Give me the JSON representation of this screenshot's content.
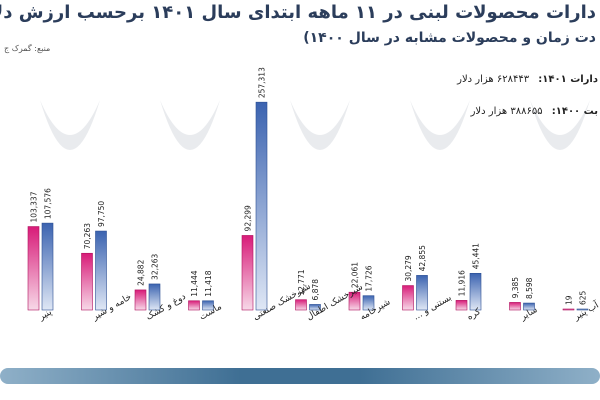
{
  "header": {
    "title": "دارات محصولات لبنی در ۱۱ ماهه ابتدای سال ۱۴۰۱ برحسب ارزش دلار",
    "subtitle": "دت زمان و محصولات مشابه در سال ۱۴۰۰)",
    "source": "منبع: گمرک ج"
  },
  "legend": {
    "row1_label": "دارات ۱۴۰۱:",
    "row1_value": "۶۲۸۴۴۳ هزار دلار",
    "row2_label": "بت ۱۴۰۰:",
    "row2_value": "۳۸۸۶۵۵ هزار دلار"
  },
  "colors": {
    "series_1401": "#d81b78",
    "series_1400": "#3b63b0",
    "band": "#3f6f94"
  },
  "chart_data": {
    "type": "bar",
    "categories": [
      "پنیر",
      "خامه و شیر",
      "دوغ و کشک",
      "ماست",
      "شیرخشک صنعتی",
      "شیرخشک اطفال",
      "شیرخامه",
      "بستنی و ...",
      "کره",
      "سایر",
      "آب پنیر"
    ],
    "series": [
      {
        "values": [
          103337,
          70263,
          24882,
          11444,
          92299,
          12771,
          22061,
          30279,
          11916,
          9385,
          19
        ],
        "labels": [
          "103,337",
          "70,263",
          "24,882",
          "11,444",
          "92,299",
          "12,771",
          "22,061",
          "30,279",
          "11,916",
          "9,385",
          "19"
        ]
      },
      {
        "values": [
          107576,
          97750,
          32263,
          11418,
          257313,
          6878,
          17726,
          42855,
          45441,
          8598,
          625
        ],
        "labels": [
          "107,576",
          "97,750",
          "32,263",
          "11,418",
          "257,313",
          "6,878",
          "17,726",
          "42,855",
          "45,441",
          "8,598",
          "625"
        ]
      }
    ],
    "ylim": [
      0,
      260000
    ]
  }
}
